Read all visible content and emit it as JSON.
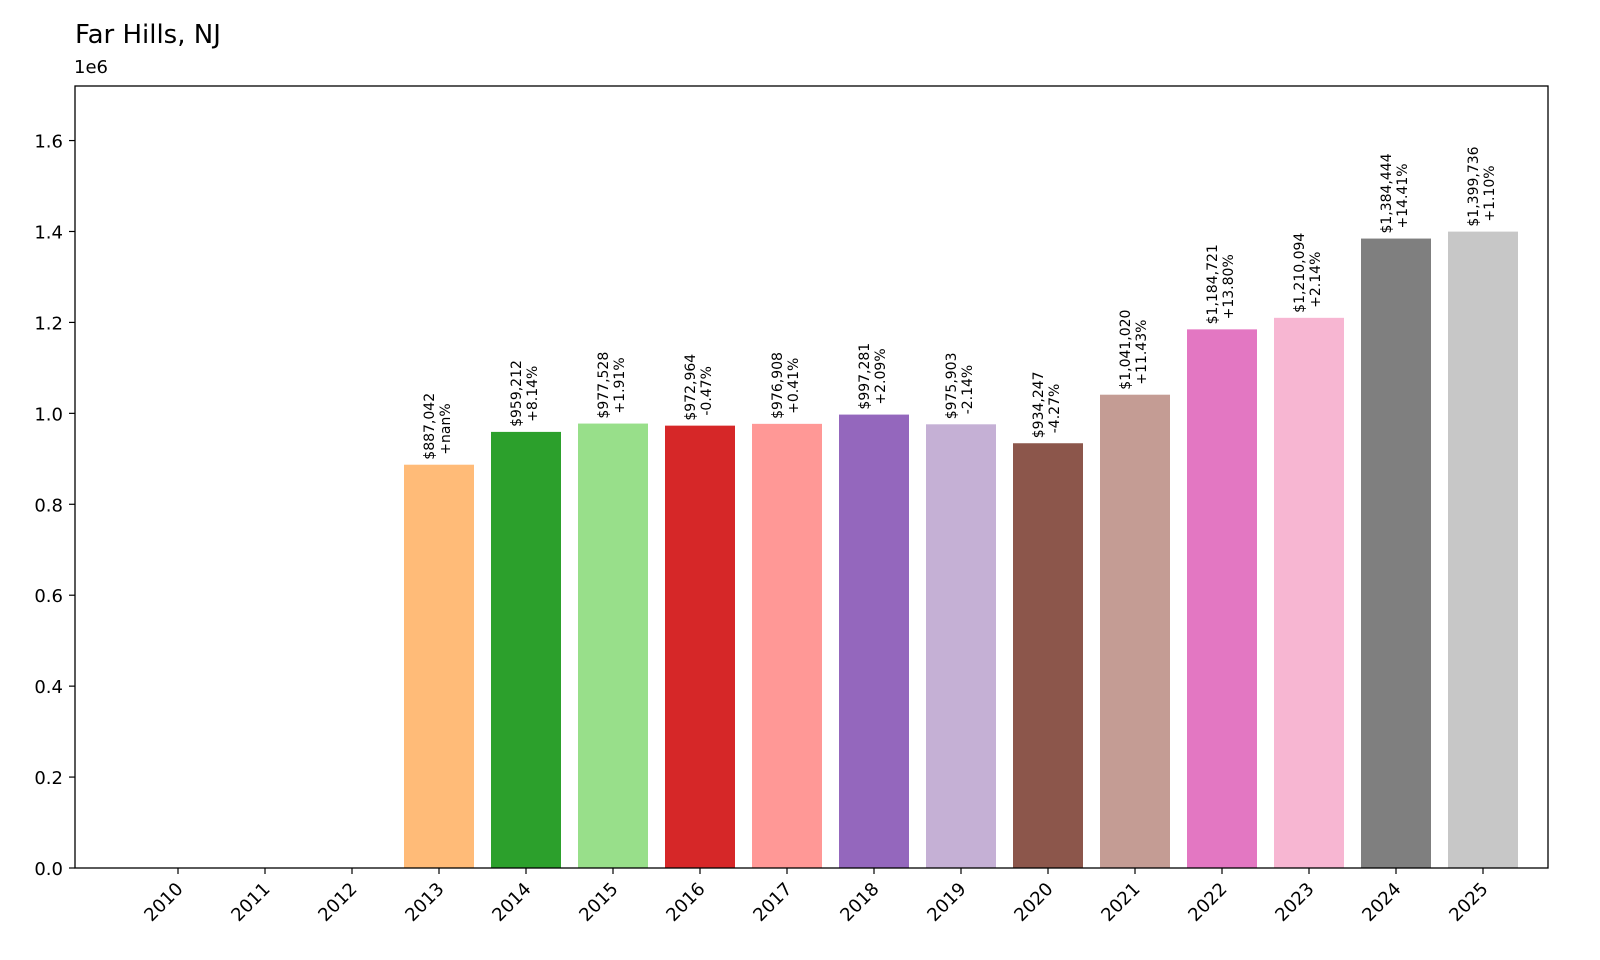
{
  "chart_data": {
    "type": "bar",
    "title": "Far Hills, NJ",
    "y_multiplier_label": "1e6",
    "xlabel": "",
    "ylabel": "",
    "ylim": [
      0,
      1720000
    ],
    "yticks": [
      0.0,
      0.2,
      0.4,
      0.6,
      0.8,
      1.0,
      1.2,
      1.4,
      1.6
    ],
    "ytick_labels": [
      "0.0",
      "0.2",
      "0.4",
      "0.6",
      "0.8",
      "1.0",
      "1.2",
      "1.4",
      "1.6"
    ],
    "grid": false,
    "categories": [
      "2010",
      "2011",
      "2012",
      "2013",
      "2014",
      "2015",
      "2016",
      "2017",
      "2018",
      "2019",
      "2020",
      "2021",
      "2022",
      "2023",
      "2024",
      "2025"
    ],
    "values": [
      0,
      0,
      0,
      887042,
      959212,
      977528,
      972964,
      976908,
      997281,
      975903,
      934247,
      1041020,
      1184721,
      1210094,
      1384444,
      1399736
    ],
    "value_labels": [
      "",
      "",
      "",
      "$887,042",
      "$959,212",
      "$977,528",
      "$972,964",
      "$976,908",
      "$997,281",
      "$975,903",
      "$934,247",
      "$1,041,020",
      "$1,184,721",
      "$1,210,094",
      "$1,384,444",
      "$1,399,736"
    ],
    "change_labels": [
      "",
      "",
      "",
      "+nan%",
      "+8.14%",
      "+1.91%",
      "-0.47%",
      "+0.41%",
      "+2.09%",
      "-2.14%",
      "-4.27%",
      "+11.43%",
      "+13.80%",
      "+2.14%",
      "+14.41%",
      "+1.10%"
    ],
    "colors": [
      "#1f77b4",
      "#aec7e8",
      "#ff7f0e",
      "#ffbb78",
      "#2ca02c",
      "#98df8a",
      "#d62728",
      "#ff9896",
      "#9467bd",
      "#c5b0d5",
      "#8c564b",
      "#c49c94",
      "#e377c2",
      "#f7b6d2",
      "#7f7f7f",
      "#c7c7c7"
    ]
  }
}
